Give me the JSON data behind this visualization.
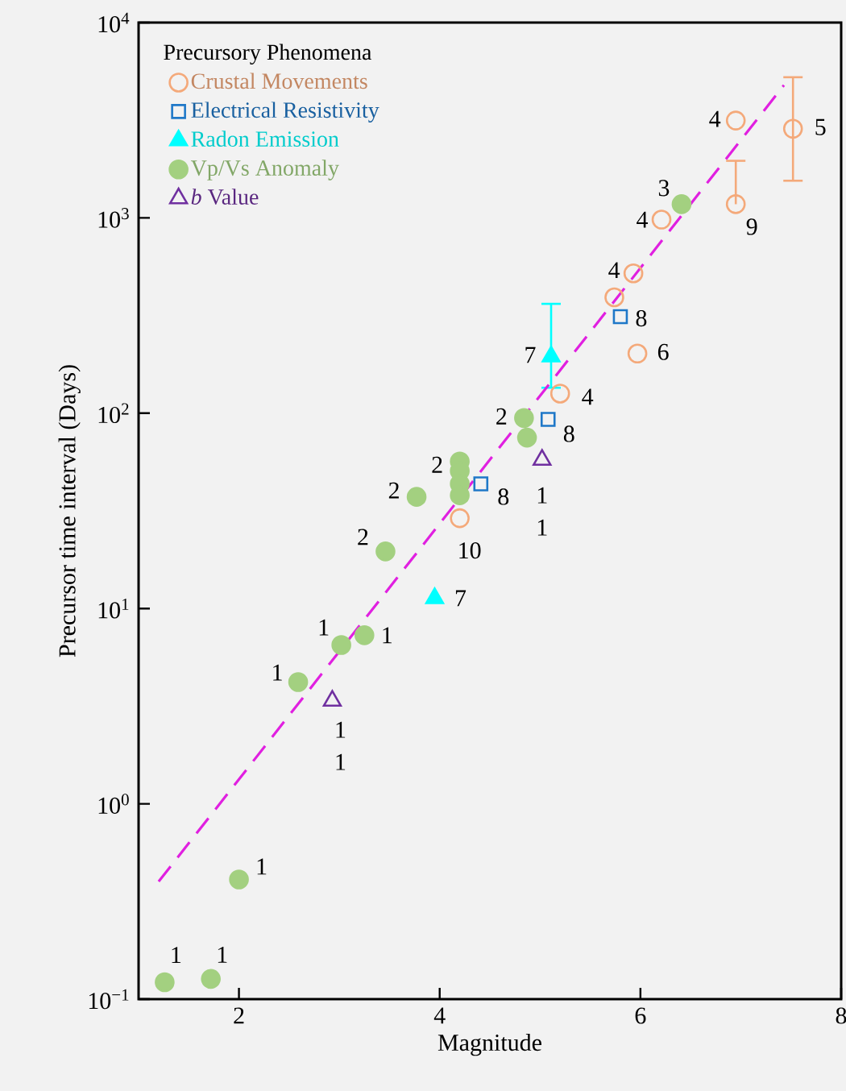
{
  "chart_data": {
    "type": "scatter",
    "xlabel": "Magnitude",
    "ylabel": "Precursor time interval (Days)",
    "xlim": [
      1,
      8
    ],
    "xticks": [
      2,
      4,
      6,
      8
    ],
    "ylim": [
      0.1,
      10000
    ],
    "log": "y",
    "yticks": [
      {
        "value": 0.1,
        "label": "10$^{−1}$"
      },
      {
        "value": 1,
        "label": "10$^{0}$"
      },
      {
        "value": 10,
        "label": "10$^{1}$"
      },
      {
        "value": 100,
        "label": "10$^{2}$"
      },
      {
        "value": 1000,
        "label": "10$^{3}$"
      },
      {
        "value": 10000,
        "label": "10$^{4}$"
      }
    ],
    "legend": "top left",
    "legend_title": "Precursory Phenomena",
    "grid": false,
    "series": [
      {
        "name": "Crustal Movements",
        "color": "#f4a97a",
        "marker": "circle",
        "x": [
          6.95,
          7.52,
          6.95,
          6.21,
          5.93,
          5.74,
          5.97,
          5.2,
          4.2
        ],
        "values": [
          3150,
          2860,
          1175,
          980,
          520,
          392,
          202,
          126,
          29
        ],
        "errors": [
          null,
          [
            1550,
            5250
          ],
          [
            1175,
            1960
          ],
          null,
          null,
          null,
          null,
          null,
          null
        ]
      },
      {
        "name": "Electrical Resistivity",
        "color": "#1f78c8",
        "marker": "square",
        "x": [
          5.8,
          5.08,
          4.41
        ],
        "values": [
          312,
          93,
          43.5
        ]
      },
      {
        "name": "Radon Emission",
        "color": "#00ffff",
        "marker": "triangle",
        "x": [
          5.11,
          3.95
        ],
        "values": [
          195,
          11.3
        ],
        "errors": [
          [
            135,
            363
          ],
          null
        ]
      },
      {
        "name": "Vp/Vs Anomaly",
        "color": "#a3d080",
        "marker": "circle",
        "x": [
          6.41,
          4.84,
          4.87,
          4.2,
          4.2,
          4.2,
          4.2,
          3.77,
          3.46,
          3.25,
          3.02,
          2.59,
          2.0,
          1.26,
          1.72
        ],
        "values": [
          1175,
          94.5,
          75,
          56.6,
          50.6,
          43.5,
          38,
          37.3,
          19.6,
          7.3,
          6.5,
          4.2,
          0.41,
          0.122,
          0.127
        ]
      },
      {
        "name": "*b* Value",
        "color": "#7030a0",
        "marker": "triangle",
        "x": [
          5.02,
          2.93
        ],
        "values": [
          57.7,
          3.37
        ]
      },
      {
        "type": "line",
        "color": "#e020e0",
        "line_style": "dashed",
        "marker": "none",
        "x": [
          1.2,
          7.43
        ],
        "values": [
          0.4,
          4780
        ]
      }
    ],
    "annotations": [
      {
        "text": "4",
        "x": 6.95,
        "y": 3150
      },
      {
        "text": "5",
        "x": 7.52,
        "y": 2860
      },
      {
        "text": "9",
        "x": 6.95,
        "y": 1175
      },
      {
        "text": "3",
        "x": 6.41,
        "y": 1175
      },
      {
        "text": "4",
        "x": 6.21,
        "y": 980
      },
      {
        "text": "4",
        "x": 5.93,
        "y": 520
      },
      {
        "text": "8",
        "x": 5.8,
        "y": 312
      },
      {
        "text": "6",
        "x": 5.97,
        "y": 202
      },
      {
        "text": "7",
        "x": 5.11,
        "y": 195
      },
      {
        "text": "4",
        "x": 5.2,
        "y": 126
      },
      {
        "text": "2",
        "x": 4.84,
        "y": 94.5
      },
      {
        "text": "8",
        "x": 5.08,
        "y": 93
      },
      {
        "text": "2",
        "x": 4.2,
        "y": 56.6
      },
      {
        "text": "2",
        "x": 3.77,
        "y": 37.3
      },
      {
        "text": "8",
        "x": 4.41,
        "y": 43.5
      },
      {
        "text": "1",
        "x": 5.02,
        "y": 57.7
      },
      {
        "text": "1",
        "x": 5.02,
        "y": 57.7
      },
      {
        "text": "10",
        "x": 4.2,
        "y": 29
      },
      {
        "text": "2",
        "x": 3.46,
        "y": 19.6
      },
      {
        "text": "7",
        "x": 3.95,
        "y": 11.3
      },
      {
        "text": "1",
        "x": 3.02,
        "y": 6.5
      },
      {
        "text": "1",
        "x": 3.25,
        "y": 7.3
      },
      {
        "text": "1",
        "x": 2.59,
        "y": 4.2
      },
      {
        "text": "1",
        "x": 2.93,
        "y": 3.37
      },
      {
        "text": "1",
        "x": 2.93,
        "y": 3.37
      },
      {
        "text": "1",
        "x": 2.0,
        "y": 0.41
      },
      {
        "text": "1",
        "x": 1.26,
        "y": 0.122
      },
      {
        "text": "1",
        "x": 1.72,
        "y": 0.127
      }
    ]
  }
}
